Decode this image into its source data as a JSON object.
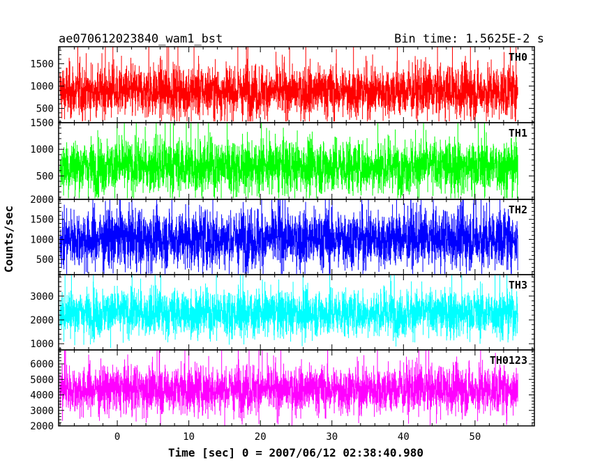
{
  "header": {
    "title": "ae070612023840_wam1_bst",
    "bin_time": "Bin time: 1.5625E-2 s"
  },
  "chart_data": [
    {
      "type": "line",
      "series": [
        {
          "name": "TH0",
          "color": "#ff0000",
          "mean": 880,
          "spread": 310,
          "low": 210,
          "high": 1870
        }
      ],
      "ylim": [
        180,
        1880
      ],
      "yticks": [
        500,
        1000,
        1500
      ],
      "ytick_labels": [
        "500",
        "1000",
        "1500"
      ],
      "label": "TH0"
    },
    {
      "type": "line",
      "series": [
        {
          "name": "TH1",
          "color": "#00ff00",
          "mean": 680,
          "spread": 270,
          "low": 80,
          "high": 1500
        }
      ],
      "ylim": [
        60,
        1500
      ],
      "yticks": [
        500,
        1000,
        1500
      ],
      "ytick_labels": [
        "500",
        "1000",
        "1500"
      ],
      "label": "TH1"
    },
    {
      "type": "line",
      "series": [
        {
          "name": "TH2",
          "color": "#0000ff",
          "mean": 1020,
          "spread": 390,
          "low": 140,
          "high": 2000
        }
      ],
      "ylim": [
        120,
        2000
      ],
      "yticks": [
        500,
        1000,
        1500,
        2000
      ],
      "ytick_labels": [
        "500",
        "1000",
        "1500",
        "2000"
      ],
      "label": "TH2"
    },
    {
      "type": "line",
      "series": [
        {
          "name": "TH3",
          "color": "#00ffff",
          "mean": 2300,
          "spread": 520,
          "low": 800,
          "high": 3900
        }
      ],
      "ylim": [
        740,
        3900
      ],
      "yticks": [
        1000,
        2000,
        3000
      ],
      "ytick_labels": [
        "1000",
        "2000",
        "3000"
      ],
      "label": "TH3"
    },
    {
      "type": "line",
      "series": [
        {
          "name": "TH0123",
          "color": "#ff00ff",
          "mean": 4350,
          "spread": 830,
          "low": 2000,
          "high": 6900
        }
      ],
      "ylim": [
        2000,
        6900
      ],
      "yticks": [
        2000,
        3000,
        4000,
        5000,
        6000
      ],
      "ytick_labels": [
        "2000",
        "3000",
        "4000",
        "5000",
        "6000"
      ],
      "label": "TH0123"
    }
  ],
  "axes": {
    "xlim": [
      -8.2,
      58.3
    ],
    "x_data_range": [
      -8,
      56
    ],
    "xticks": [
      0,
      10,
      20,
      30,
      40,
      50
    ],
    "xtick_labels": [
      "0",
      "10",
      "20",
      "30",
      "40",
      "50"
    ],
    "xlabel": "Time [sec] 0 = 2007/06/12 02:38:40.980",
    "ylabel": "Counts/sec"
  }
}
